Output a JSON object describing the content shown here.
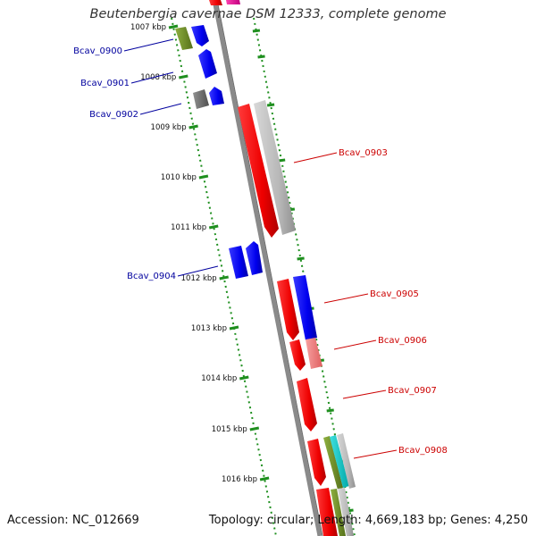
{
  "header": {
    "title": "Beutenbergia cavernae DSM 12333, complete genome"
  },
  "footer": {
    "accession": "Accession: NC_012669",
    "summary": "Topology: circular; Length: 4,669,183 bp; Genes: 4,250"
  },
  "map": {
    "scale_labels": [
      "1007 kbp",
      "1008 kbp",
      "1009 kbp",
      "1010 kbp",
      "1011 kbp",
      "1012 kbp",
      "1013 kbp",
      "1014 kbp",
      "1015 kbp",
      "1016 kbp"
    ],
    "genes_left": [
      {
        "label": "Bcav_0900",
        "color": "#00009e"
      },
      {
        "label": "Bcav_0901",
        "color": "#00009e"
      },
      {
        "label": "Bcav_0902",
        "color": "#00009e"
      },
      {
        "label": "Bcav_0904",
        "color": "#00009e"
      }
    ],
    "genes_right": [
      {
        "label": "Bcav_0903",
        "color": "#cc0000"
      },
      {
        "label": "Bcav_0905",
        "color": "#cc0000"
      },
      {
        "label": "Bcav_0906",
        "color": "#cc0000"
      },
      {
        "label": "Bcav_0907",
        "color": "#cc0000"
      },
      {
        "label": "Bcav_0908",
        "color": "#cc0000"
      }
    ],
    "feature_colors": {
      "forward_cds": "#0000ee",
      "reverse_cds": "#ee0000",
      "gray": "#b8b8b8",
      "dark_gray": "#707070",
      "olive": "#6b8e23",
      "pink": "#f08080",
      "cyan": "#00cccc",
      "magenta": "#e0109a",
      "tick_green": "#1f8f1f",
      "backbone": "#8a8a8a"
    }
  }
}
